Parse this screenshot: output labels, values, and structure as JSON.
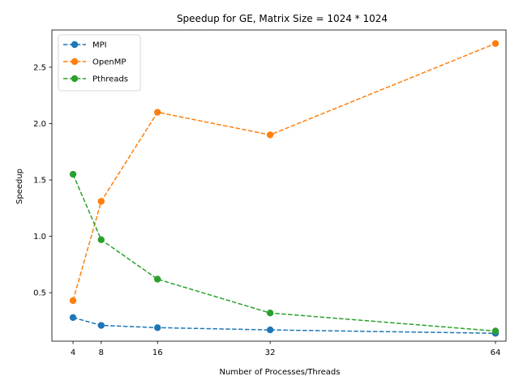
{
  "chart_data": {
    "type": "line",
    "title": "Speedup for GE, Matrix Size = 1024 * 1024",
    "xlabel": "Number of Processes/Threads",
    "ylabel": "Speedup",
    "x": [
      4,
      8,
      16,
      32,
      64
    ],
    "x_ticks": [
      4,
      8,
      16,
      32,
      64
    ],
    "y_ticks": [
      0.5,
      1.0,
      1.5,
      2.0,
      2.5
    ],
    "y_tick_labels": [
      "0.5",
      "1.0",
      "1.5",
      "2.0",
      "2.5"
    ],
    "xlim": [
      1,
      65.5
    ],
    "ylim": [
      0.07,
      2.83
    ],
    "grid": false,
    "legend_position": "top-left",
    "line_style": "dashed",
    "marker": "circle",
    "series": [
      {
        "name": "MPI",
        "color": "#1f77b4",
        "values": [
          0.28,
          0.21,
          0.19,
          0.17,
          0.14
        ]
      },
      {
        "name": "OpenMP",
        "color": "#ff7f0e",
        "values": [
          0.43,
          1.31,
          2.1,
          1.9,
          2.71
        ]
      },
      {
        "name": "Pthreads",
        "color": "#2ca02c",
        "values": [
          1.55,
          0.97,
          0.62,
          0.32,
          0.16
        ]
      }
    ]
  }
}
